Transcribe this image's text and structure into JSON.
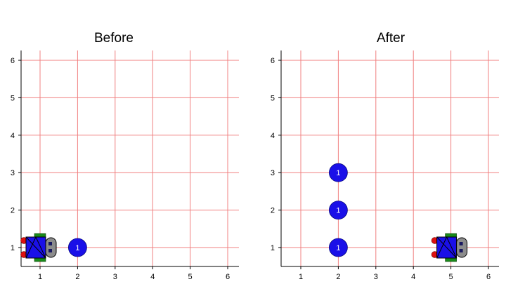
{
  "panels": [
    {
      "title": "Before",
      "x_ticks": [
        "1",
        "2",
        "3",
        "4",
        "5",
        "6"
      ],
      "y_ticks": [
        "1",
        "2",
        "3",
        "4",
        "5",
        "6"
      ],
      "robot": {
        "col": 1,
        "row": 1,
        "facing": "east"
      },
      "beepers": [
        {
          "col": 2,
          "row": 1,
          "count": "1"
        }
      ]
    },
    {
      "title": "After",
      "x_ticks": [
        "1",
        "2",
        "3",
        "4",
        "5",
        "6"
      ],
      "y_ticks": [
        "1",
        "2",
        "3",
        "4",
        "5",
        "6"
      ],
      "robot": {
        "col": 5,
        "row": 1,
        "facing": "east"
      },
      "beepers": [
        {
          "col": 2,
          "row": 1,
          "count": "1"
        },
        {
          "col": 2,
          "row": 2,
          "count": "1"
        },
        {
          "col": 2,
          "row": 3,
          "count": "1"
        }
      ]
    }
  ],
  "colors": {
    "grid": "#f08080",
    "beeper": "#1a10e8",
    "robot_body": "#1a10e8",
    "robot_wheel": "#dd1111",
    "robot_tread": "#1a8a1a",
    "robot_head": "#8c8c8c"
  }
}
